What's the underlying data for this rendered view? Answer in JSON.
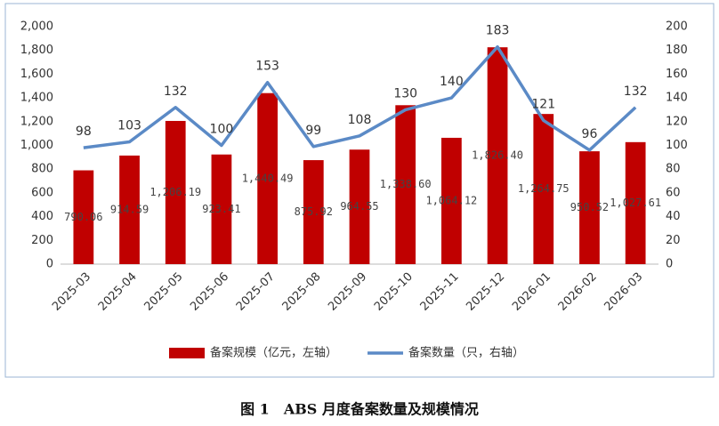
{
  "chart_data": {
    "type": "bar",
    "caption": "图 1　ABS 月度备案数量及规模情况",
    "categories": [
      "2025-03",
      "2025-04",
      "2025-05",
      "2025-06",
      "2025-07",
      "2025-08",
      "2025-09",
      "2025-10",
      "2025-11",
      "2025-12",
      "2026-01",
      "2026-02",
      "2026-03"
    ],
    "series": [
      {
        "name": "备案规模（亿元，左轴）",
        "type": "bar",
        "color": "#c00000",
        "values": [
          790.06,
          914.59,
          1206.19,
          923.41,
          1440.49,
          875.92,
          964.55,
          1338.6,
          1064.12,
          1826.4,
          1264.75,
          950.52,
          1027.61
        ],
        "value_labels": [
          "790.06",
          "914.59",
          "1,206.19",
          "923.41",
          "1,440.49",
          "875.92",
          "964.55",
          "1,338.60",
          "1,064.12",
          "1,826.40",
          "1,264.75",
          "950.52",
          "1,027.61"
        ]
      },
      {
        "name": "备案数量（只，右轴）",
        "type": "line",
        "axis": "y2",
        "color": "#5b8ac6",
        "values": [
          98,
          103,
          132,
          100,
          153,
          99,
          108,
          130,
          140,
          183,
          121,
          96,
          132
        ]
      }
    ],
    "ylim": [
      0,
      2000
    ],
    "yticks": [
      0,
      200,
      400,
      600,
      800,
      {
        "value": 1000,
        "label": "1,000"
      },
      {
        "value": 1200,
        "label": "1,200"
      },
      {
        "value": 1400,
        "label": "1,400"
      },
      {
        "value": 1600,
        "label": "1,600"
      },
      {
        "value": 1800,
        "label": "1,800"
      },
      {
        "value": 2000,
        "label": "2,000"
      }
    ],
    "y2lim": [
      0,
      200
    ],
    "y2ticks": [
      0,
      20,
      40,
      60,
      80,
      100,
      120,
      140,
      160,
      180,
      200
    ],
    "legend": "bottom"
  }
}
